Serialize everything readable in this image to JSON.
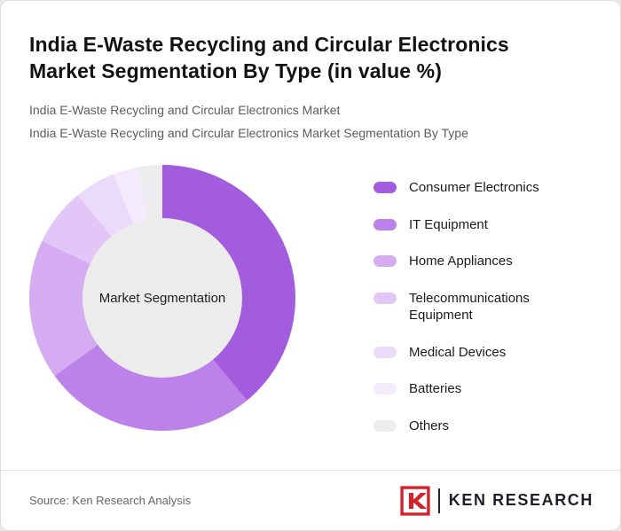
{
  "header": {
    "title": "India E-Waste Recycling and Circular Electronics Market Segmentation By Type (in value %)",
    "subtitle1": "India E-Waste Recycling and Circular Electronics Market",
    "subtitle2": "India E-Waste Recycling and Circular Electronics Market Segmentation By Type"
  },
  "chart_data": {
    "type": "pie",
    "variant": "donut",
    "title": "India E-Waste Recycling and Circular Electronics Market Segmentation By Type (in value %)",
    "center_label": "Market Segmentation",
    "unit": "value %",
    "start_angle_deg": 0,
    "direction": "clockwise",
    "legend_position": "right",
    "segments": [
      {
        "label": "Consumer Electronics",
        "value": 39,
        "color": "#A35CDE"
      },
      {
        "label": "IT Equipment",
        "value": 26,
        "color": "#BC82E9"
      },
      {
        "label": "Home Appliances",
        "value": 17,
        "color": "#D5ABF2"
      },
      {
        "label": "Telecommunications Equipment",
        "value": 7,
        "color": "#E2C6F7"
      },
      {
        "label": "Medical Devices",
        "value": 5,
        "color": "#ECDAFA"
      },
      {
        "label": "Batteries",
        "value": 3,
        "color": "#F3EAFC"
      },
      {
        "label": "Others",
        "value": 3,
        "color": "#EDECEF"
      }
    ]
  },
  "footer": {
    "source": "Source: Ken Research Analysis",
    "logo_letter": "K",
    "logo_text": "KEN RESEARCH"
  },
  "colors": {
    "hole_fill": "#ececec",
    "logo_red": "#D2232A",
    "logo_navy": "#1e2029"
  }
}
